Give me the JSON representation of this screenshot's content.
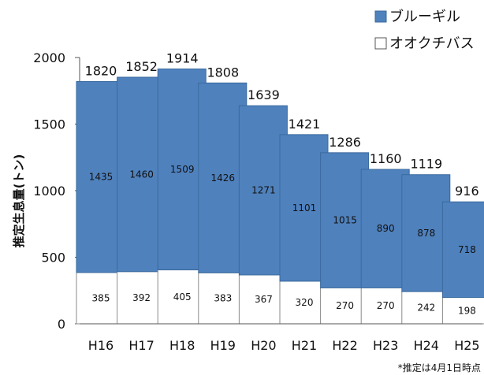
{
  "chart_data": {
    "type": "bar",
    "stacked": true,
    "categories": [
      "H16",
      "H17",
      "H18",
      "H19",
      "H20",
      "H21",
      "H22",
      "H23",
      "H24",
      "H25"
    ],
    "series": [
      {
        "name": "オオクチバス",
        "values": [
          385,
          392,
          405,
          383,
          367,
          320,
          270,
          270,
          242,
          198
        ],
        "color": "#ffffff"
      },
      {
        "name": "ブルーギル",
        "values": [
          1435,
          1460,
          1509,
          1426,
          1271,
          1101,
          1015,
          890,
          878,
          718
        ],
        "color": "#4f81bd"
      }
    ],
    "totals": [
      1820,
      1852,
      1914,
      1808,
      1639,
      1421,
      1286,
      1160,
      1119,
      916
    ],
    "ylabel": "推定生息量(トン)",
    "ylim": [
      0,
      2000
    ],
    "yticks": [
      0,
      500,
      1000,
      1500,
      2000
    ],
    "legend_position": "top-right",
    "note": "*推定は4月1日時点",
    "grid": false
  }
}
